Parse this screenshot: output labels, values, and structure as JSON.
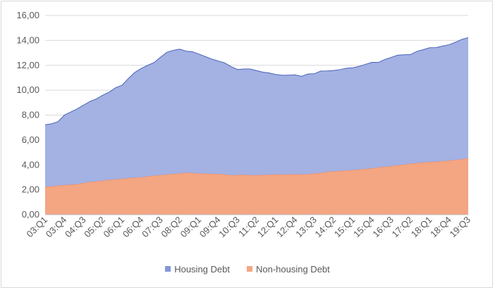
{
  "chart_data": {
    "type": "area",
    "stacked": true,
    "ylim": [
      0,
      16
    ],
    "yticks": [
      "0,00",
      "2,00",
      "4,00",
      "6,00",
      "8,00",
      "10,00",
      "12,00",
      "14,00",
      "16,00"
    ],
    "grid": true,
    "legend_position": "bottom",
    "x": [
      "03:Q1",
      "03:Q2",
      "03:Q3",
      "03:Q4",
      "04:Q1",
      "04:Q2",
      "04:Q3",
      "04:Q4",
      "05:Q1",
      "05:Q2",
      "05:Q3",
      "05:Q4",
      "06:Q1",
      "06:Q2",
      "06:Q3",
      "06:Q4",
      "07:Q1",
      "07:Q2",
      "07:Q3",
      "07:Q4",
      "08:Q1",
      "08:Q2",
      "08:Q3",
      "08:Q4",
      "09:Q1",
      "09:Q2",
      "09:Q3",
      "09:Q4",
      "10:Q1",
      "10:Q2",
      "10:Q3",
      "10:Q4",
      "11:Q1",
      "11:Q2",
      "11:Q3",
      "11:Q4",
      "12:Q1",
      "12:Q2",
      "12:Q3",
      "12:Q4",
      "13:Q1",
      "13:Q2",
      "13:Q3",
      "13:Q4",
      "14:Q1",
      "14:Q2",
      "14:Q3",
      "14:Q4",
      "15:Q1",
      "15:Q2",
      "15:Q3",
      "15:Q4",
      "16:Q1",
      "16:Q2",
      "16:Q3",
      "16:Q4",
      "17:Q1",
      "17:Q2",
      "17:Q3",
      "17:Q4",
      "18:Q1",
      "18:Q2",
      "18:Q3",
      "18:Q4",
      "19:Q1",
      "19:Q2",
      "19:Q3"
    ],
    "xtick_labels": [
      "03:Q1",
      "03:Q4",
      "04:Q3",
      "05:Q2",
      "06:Q1",
      "06:Q4",
      "07:Q3",
      "08:Q2",
      "09:Q1",
      "09:Q4",
      "10:Q3",
      "11:Q2",
      "12:Q1",
      "12:Q4",
      "13:Q3",
      "14:Q2",
      "15:Q1",
      "15:Q4",
      "16:Q3",
      "17:Q2",
      "18:Q1",
      "18:Q4",
      "19:Q3"
    ],
    "series": [
      {
        "name": "Non-housing Debt",
        "color": "#f4a582",
        "stroke": "#f08c5a",
        "values": [
          2.25,
          2.28,
          2.33,
          2.38,
          2.4,
          2.45,
          2.55,
          2.62,
          2.68,
          2.74,
          2.8,
          2.84,
          2.88,
          2.93,
          2.98,
          3.0,
          3.08,
          3.13,
          3.18,
          3.23,
          3.27,
          3.31,
          3.38,
          3.35,
          3.3,
          3.3,
          3.28,
          3.27,
          3.22,
          3.18,
          3.18,
          3.2,
          3.18,
          3.17,
          3.2,
          3.2,
          3.22,
          3.24,
          3.22,
          3.25,
          3.24,
          3.26,
          3.3,
          3.35,
          3.44,
          3.48,
          3.52,
          3.55,
          3.58,
          3.62,
          3.68,
          3.72,
          3.8,
          3.85,
          3.9,
          3.97,
          4.03,
          4.1,
          4.15,
          4.2,
          4.23,
          4.26,
          4.3,
          4.35,
          4.4,
          4.45,
          4.55
        ]
      },
      {
        "name": "Housing Debt",
        "color": "#a3b1e3",
        "stroke": "#4a63b8",
        "values": [
          4.97,
          5.02,
          5.14,
          5.62,
          5.85,
          6.05,
          6.25,
          6.48,
          6.62,
          6.86,
          7.05,
          7.36,
          7.52,
          8.02,
          8.45,
          8.75,
          8.92,
          9.09,
          9.47,
          9.82,
          9.93,
          9.99,
          9.76,
          9.73,
          9.6,
          9.4,
          9.22,
          9.08,
          8.97,
          8.72,
          8.48,
          8.5,
          8.52,
          8.4,
          8.25,
          8.18,
          8.04,
          7.96,
          7.99,
          7.98,
          7.88,
          8.04,
          8.02,
          8.19,
          8.11,
          8.1,
          8.13,
          8.22,
          8.22,
          8.3,
          8.4,
          8.52,
          8.43,
          8.62,
          8.74,
          8.84,
          8.82,
          8.76,
          8.97,
          9.06,
          9.18,
          9.16,
          9.25,
          9.3,
          9.45,
          9.63,
          9.67
        ]
      }
    ]
  },
  "legend": [
    {
      "label": "Housing Debt",
      "color": "#8496d6"
    },
    {
      "label": "Non-housing Debt",
      "color": "#f4a582"
    }
  ]
}
